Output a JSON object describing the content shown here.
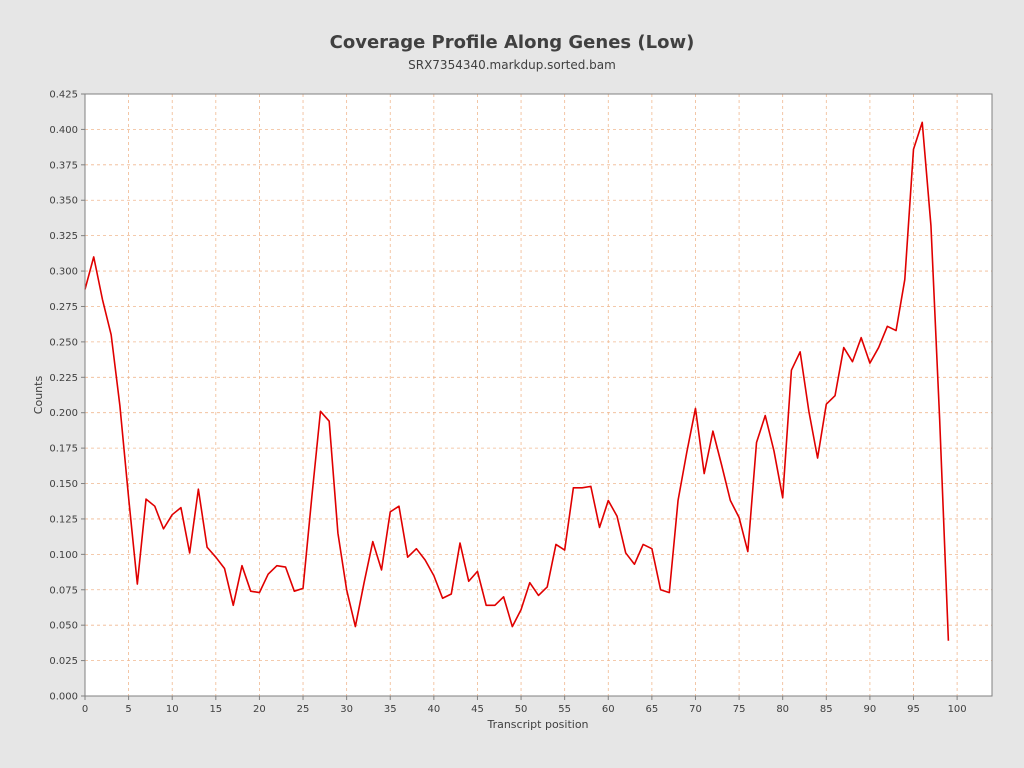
{
  "chart_data": {
    "type": "line",
    "title": "Coverage Profile Along Genes (Low)",
    "subtitle": "SRX7354340.markdup.sorted.bam",
    "xlabel": "Transcript position",
    "ylabel": "Counts",
    "xlim": [
      0,
      104
    ],
    "ylim": [
      0,
      0.425
    ],
    "grid": true,
    "x_ticks": [
      0,
      5,
      10,
      15,
      20,
      25,
      30,
      35,
      40,
      45,
      50,
      55,
      60,
      65,
      70,
      75,
      80,
      85,
      90,
      95,
      100
    ],
    "x_tick_labels": [
      "0",
      "5",
      "10",
      "15",
      "20",
      "25",
      "30",
      "35",
      "40",
      "45",
      "50",
      "55",
      "60",
      "65",
      "70",
      "75",
      "80",
      "85",
      "90",
      "95",
      "100"
    ],
    "y_ticks": [
      0,
      0.025,
      0.05,
      0.075,
      0.1,
      0.125,
      0.15,
      0.175,
      0.2,
      0.225,
      0.25,
      0.275,
      0.3,
      0.325,
      0.35,
      0.375,
      0.4,
      0.425
    ],
    "y_tick_labels": [
      "0.000",
      "0.025",
      "0.050",
      "0.075",
      "0.100",
      "0.125",
      "0.150",
      "0.175",
      "0.200",
      "0.225",
      "0.250",
      "0.275",
      "0.300",
      "0.325",
      "0.350",
      "0.375",
      "0.400",
      "0.425"
    ],
    "series": [
      {
        "name": "coverage",
        "color": "#e00000",
        "x": [
          0,
          1,
          2,
          3,
          4,
          5,
          6,
          7,
          8,
          9,
          10,
          11,
          12,
          13,
          14,
          15,
          16,
          17,
          18,
          19,
          20,
          21,
          22,
          23,
          24,
          25,
          26,
          27,
          28,
          29,
          30,
          31,
          32,
          33,
          34,
          35,
          36,
          37,
          38,
          39,
          40,
          41,
          42,
          43,
          44,
          45,
          46,
          47,
          48,
          49,
          50,
          51,
          52,
          53,
          54,
          55,
          56,
          57,
          58,
          59,
          60,
          61,
          62,
          63,
          64,
          65,
          66,
          67,
          68,
          69,
          70,
          71,
          72,
          73,
          74,
          75,
          76,
          77,
          78,
          79,
          80,
          81,
          82,
          83,
          84,
          85,
          86,
          87,
          88,
          89,
          90,
          91,
          92,
          93,
          94,
          95,
          96,
          97,
          98,
          99
        ],
        "values": [
          0.287,
          0.31,
          0.28,
          0.255,
          0.205,
          0.14,
          0.079,
          0.139,
          0.134,
          0.118,
          0.128,
          0.133,
          0.101,
          0.146,
          0.105,
          0.098,
          0.09,
          0.064,
          0.092,
          0.074,
          0.073,
          0.086,
          0.092,
          0.091,
          0.074,
          0.076,
          0.14,
          0.201,
          0.194,
          0.115,
          0.075,
          0.049,
          0.08,
          0.109,
          0.089,
          0.13,
          0.134,
          0.098,
          0.104,
          0.096,
          0.085,
          0.069,
          0.072,
          0.108,
          0.081,
          0.088,
          0.064,
          0.064,
          0.07,
          0.049,
          0.061,
          0.08,
          0.071,
          0.077,
          0.107,
          0.103,
          0.147,
          0.147,
          0.148,
          0.119,
          0.138,
          0.127,
          0.101,
          0.093,
          0.107,
          0.104,
          0.075,
          0.073,
          0.138,
          0.172,
          0.203,
          0.157,
          0.187,
          0.163,
          0.138,
          0.126,
          0.102,
          0.179,
          0.198,
          0.173,
          0.14,
          0.23,
          0.243,
          0.201,
          0.168,
          0.206,
          0.212,
          0.246,
          0.236,
          0.253,
          0.235,
          0.246,
          0.261,
          0.258,
          0.294,
          0.386,
          0.405,
          0.332,
          0.195,
          0.039
        ]
      }
    ]
  }
}
